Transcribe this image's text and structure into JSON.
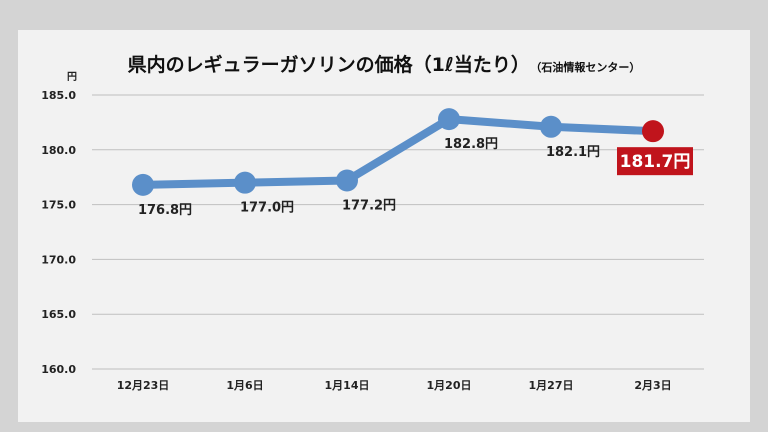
{
  "chart_data": {
    "type": "line",
    "title": "県内のレギュラーガソリンの価格（1ℓ当たり）",
    "source": "（石油情報センター）",
    "y_unit": "円",
    "categories": [
      "12月23日",
      "1月6日",
      "1月14日",
      "1月20日",
      "1月27日",
      "2月3日"
    ],
    "values": [
      176.8,
      177.0,
      177.2,
      182.8,
      182.1,
      181.7
    ],
    "data_labels": [
      "176.8円",
      "177.0円",
      "177.2円",
      "182.8円",
      "182.1円",
      "181.7円"
    ],
    "ylim": [
      160.0,
      185.0
    ],
    "yticks": [
      "185.0",
      "180.0",
      "175.0",
      "170.0",
      "165.0",
      "160.0"
    ],
    "grid": true,
    "colors": {
      "line": "#5b8fc9",
      "marker": "#5b8fc9",
      "highlight": "#c0141c",
      "grid": "#bfbfbf"
    }
  }
}
